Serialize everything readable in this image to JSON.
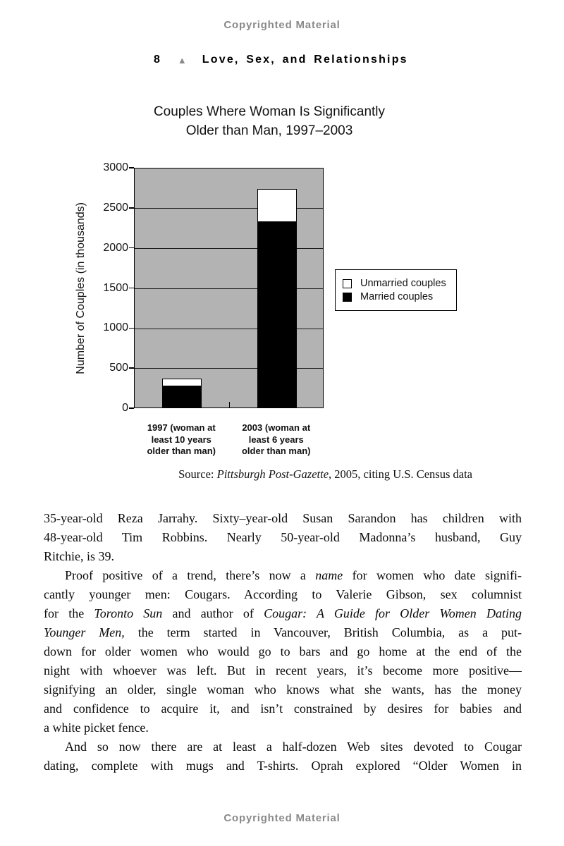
{
  "page": {
    "copyright_notice_top": "Copyrighted Material",
    "copyright_notice_bottom": "Copyrighted Material",
    "running_head": {
      "page_number": "8",
      "separator_glyph": "▲",
      "title": "Love, Sex, and Relationships"
    }
  },
  "colors": {
    "copyright_text": "#8a8a8a",
    "triangle_separator": "#8a8a8a",
    "plot_background": "#b3b3b3",
    "grid_line": "#1a1a1a",
    "married_bar": "#000000",
    "unmarried_bar": "#ffffff"
  },
  "chart_data": {
    "type": "bar",
    "stacked": true,
    "title": "Couples Where Woman Is Significantly Older than Man, 1997–2003",
    "title_lines": [
      "Couples Where Woman Is Significantly",
      "Older than Man, 1997–2003"
    ],
    "ylabel": "Number of Couples (in thousands)",
    "xlabel": "",
    "ylim": [
      0,
      3000
    ],
    "yticks": [
      0,
      500,
      1000,
      1500,
      2000,
      2500,
      3000
    ],
    "grid": true,
    "plot_background": "#b3b3b3",
    "categories": [
      [
        "1997 (woman at",
        "least 10 years",
        "older than man)"
      ],
      [
        "2003 (woman at",
        "least 6 years",
        "older than man)"
      ]
    ],
    "series": [
      {
        "name": "Married couples",
        "color": "#000000",
        "values": [
          260,
          2310
        ]
      },
      {
        "name": "Unmarried couples",
        "color": "#ffffff",
        "values": [
          105,
          420
        ]
      }
    ],
    "legend": {
      "position": "right",
      "items": [
        {
          "label": "Unmarried couples",
          "swatch": "#ffffff"
        },
        {
          "label": "Married couples",
          "swatch": "#000000"
        }
      ]
    },
    "source_segments": [
      {
        "t": "Source: "
      },
      {
        "t": "Pittsburgh Post-Gazette",
        "i": true
      },
      {
        "t": ", 2005, citing U.S. Census data"
      }
    ]
  },
  "body": {
    "paragraphs": [
      {
        "indent": false,
        "lines": [
          {
            "justify": true,
            "segments": [
              {
                "t": "35-year-old Reza Jarrahy. Sixty–year-old Susan Sarandon has children with"
              }
            ]
          },
          {
            "justify": true,
            "segments": [
              {
                "t": "48-year-old Tim Robbins. Nearly 50-year-old Madonna’s husband, Guy"
              }
            ]
          },
          {
            "justify": false,
            "segments": [
              {
                "t": "Ritchie, is 39."
              }
            ]
          }
        ]
      },
      {
        "indent": true,
        "lines": [
          {
            "justify": true,
            "segments": [
              {
                "t": "Proof positive of a trend, there’s now a "
              },
              {
                "t": "name",
                "i": true
              },
              {
                "t": " for women who date signifi-"
              }
            ]
          },
          {
            "justify": true,
            "segments": [
              {
                "t": "cantly younger men: Cougars. According to Valerie Gibson, sex columnist"
              }
            ]
          },
          {
            "justify": true,
            "segments": [
              {
                "t": "for the "
              },
              {
                "t": "Toronto Sun",
                "i": true
              },
              {
                "t": " and author of "
              },
              {
                "t": "Cougar: A Guide for Older Women Dating",
                "i": true
              }
            ]
          },
          {
            "justify": true,
            "segments": [
              {
                "t": "Younger Men,",
                "i": true
              },
              {
                "t": " the term started in Vancouver, British Columbia, as a put-"
              }
            ]
          },
          {
            "justify": true,
            "segments": [
              {
                "t": "down for older women who would go to bars and go home at the end of the"
              }
            ]
          },
          {
            "justify": true,
            "segments": [
              {
                "t": "night with whoever was left. But in recent years, it’s become more positive—"
              }
            ]
          },
          {
            "justify": true,
            "segments": [
              {
                "t": "signifying an older, single woman who knows what she wants, has the money"
              }
            ]
          },
          {
            "justify": true,
            "segments": [
              {
                "t": "and confidence to acquire it, and isn’t constrained by desires for babies and"
              }
            ]
          },
          {
            "justify": false,
            "segments": [
              {
                "t": "a white picket fence."
              }
            ]
          }
        ]
      },
      {
        "indent": true,
        "lines": [
          {
            "justify": true,
            "segments": [
              {
                "t": "And so now there are at least a half-dozen Web sites devoted to Cougar"
              }
            ]
          },
          {
            "justify": true,
            "segments": [
              {
                "t": "dating, complete with mugs and T-shirts. Oprah explored “Older Women in"
              }
            ]
          }
        ]
      }
    ]
  }
}
